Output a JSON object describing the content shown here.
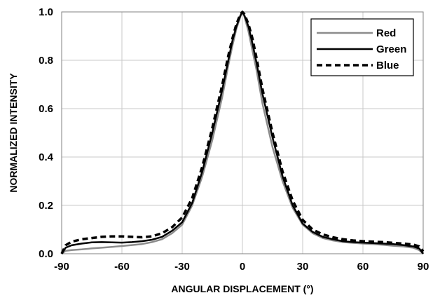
{
  "chart_data": {
    "type": "line",
    "xlabel": "ANGULAR DISPLACEMENT (°)",
    "ylabel": "NORMALIZED INTENSITY",
    "xlim": [
      -90,
      90
    ],
    "ylim": [
      0,
      1
    ],
    "x_ticks": [
      -90,
      -60,
      -30,
      0,
      30,
      60,
      90
    ],
    "x_tick_labels": [
      "-90",
      "-60",
      "-30",
      "0",
      "30",
      "60",
      "90"
    ],
    "y_ticks": [
      0,
      0.2,
      0.4,
      0.6,
      0.8,
      1.0
    ],
    "y_tick_labels": [
      "0.0",
      "0.2",
      "0.4",
      "0.6",
      "0.8",
      "1.0"
    ],
    "grid": true,
    "legend_position": "top-right",
    "x": [
      -90,
      -88,
      -85,
      -80,
      -75,
      -70,
      -65,
      -60,
      -55,
      -50,
      -45,
      -40,
      -35,
      -30,
      -25,
      -20,
      -15,
      -10,
      -7,
      -5,
      -3,
      -1,
      0,
      1,
      3,
      5,
      7,
      10,
      15,
      20,
      25,
      30,
      35,
      40,
      45,
      50,
      55,
      60,
      65,
      70,
      75,
      80,
      85,
      88,
      90
    ],
    "series": [
      {
        "name": "Red",
        "color": "#8c8c8c",
        "dash": "solid",
        "values": [
          0.0,
          0.012,
          0.015,
          0.018,
          0.022,
          0.025,
          0.028,
          0.032,
          0.036,
          0.04,
          0.048,
          0.06,
          0.085,
          0.12,
          0.2,
          0.32,
          0.47,
          0.65,
          0.78,
          0.86,
          0.93,
          0.98,
          1.0,
          0.98,
          0.92,
          0.84,
          0.76,
          0.62,
          0.44,
          0.3,
          0.19,
          0.12,
          0.085,
          0.065,
          0.055,
          0.048,
          0.045,
          0.042,
          0.04,
          0.037,
          0.033,
          0.03,
          0.025,
          0.015,
          0.0
        ]
      },
      {
        "name": "Green",
        "color": "#000000",
        "dash": "solid",
        "values": [
          0.0,
          0.025,
          0.035,
          0.042,
          0.047,
          0.048,
          0.047,
          0.046,
          0.048,
          0.052,
          0.058,
          0.07,
          0.095,
          0.13,
          0.21,
          0.34,
          0.5,
          0.68,
          0.8,
          0.88,
          0.94,
          0.985,
          1.0,
          0.985,
          0.94,
          0.87,
          0.79,
          0.66,
          0.48,
          0.32,
          0.2,
          0.125,
          0.09,
          0.07,
          0.06,
          0.052,
          0.048,
          0.046,
          0.044,
          0.042,
          0.04,
          0.036,
          0.03,
          0.022,
          0.0
        ]
      },
      {
        "name": "Blue",
        "color": "#000000",
        "dash": "dashed",
        "values": [
          0.0,
          0.035,
          0.05,
          0.06,
          0.065,
          0.07,
          0.072,
          0.072,
          0.07,
          0.068,
          0.072,
          0.085,
          0.11,
          0.15,
          0.23,
          0.36,
          0.52,
          0.7,
          0.82,
          0.89,
          0.95,
          0.99,
          1.0,
          0.99,
          0.95,
          0.89,
          0.81,
          0.68,
          0.5,
          0.34,
          0.22,
          0.14,
          0.1,
          0.08,
          0.068,
          0.06,
          0.055,
          0.052,
          0.05,
          0.048,
          0.045,
          0.042,
          0.038,
          0.03,
          0.01
        ]
      }
    ]
  }
}
